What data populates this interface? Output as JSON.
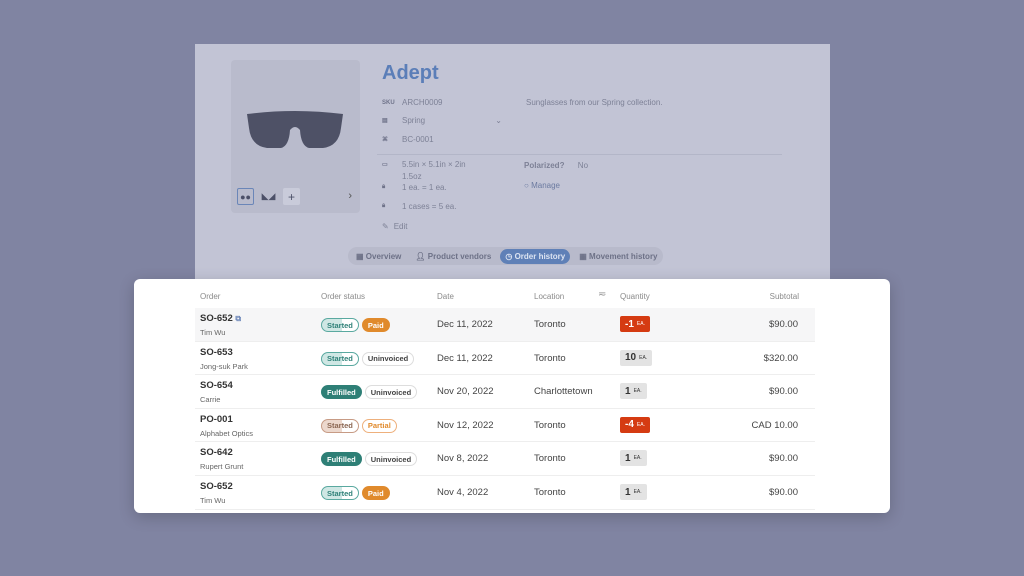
{
  "product": {
    "title": "Adept",
    "sku_label": "SKU",
    "sku": "ARCH0009",
    "collection": "Spring",
    "barcode": "BC-0001",
    "description": "Sunglasses from our Spring collection.",
    "dimensions": "5.5in × 5.1in × 2in",
    "weight": "1.5oz",
    "unit1": "1 ea. = 1 ea.",
    "unit2": "1 cases = 5 ea.",
    "edit": "Edit",
    "polarized_label": "Polarized?",
    "polarized_value": "No",
    "manage": "Manage"
  },
  "tabs": [
    {
      "label": "Overview",
      "icon": "list-icon"
    },
    {
      "label": "Product vendors",
      "icon": "person-icon"
    },
    {
      "label": "Order history",
      "icon": "clock-icon",
      "active": true
    },
    {
      "label": "Movement history",
      "icon": "grid-icon"
    }
  ],
  "table": {
    "headers": {
      "order": "Order",
      "status": "Order status",
      "date": "Date",
      "location": "Location",
      "quantity": "Quantity",
      "subtotal": "Subtotal"
    },
    "rows": [
      {
        "id": "SO-652",
        "name": "Tim Wu",
        "status": "Started",
        "payment": "Paid",
        "date": "Dec 11, 2022",
        "location": "Toronto",
        "qty": "-1",
        "unit": "EA.",
        "negative": true,
        "subtotal": "$90.00"
      },
      {
        "id": "SO-653",
        "name": "Jong-suk Park",
        "status": "Started",
        "payment": "Uninvoiced",
        "date": "Dec 11, 2022",
        "location": "Toronto",
        "qty": "10",
        "unit": "EA.",
        "subtotal": "$320.00"
      },
      {
        "id": "SO-654",
        "name": "Carrie",
        "status": "Fulfilled",
        "payment": "Uninvoiced",
        "date": "Nov 20, 2022",
        "location": "Charlottetown",
        "qty": "1",
        "unit": "EA.",
        "subtotal": "$90.00"
      },
      {
        "id": "PO-001",
        "name": "Alphabet Optics",
        "status": "Started",
        "payment": "Partial",
        "date": "Nov 12, 2022",
        "location": "Toronto",
        "qty": "-4",
        "unit": "EA.",
        "negative": true,
        "subtotal": "CAD 10.00"
      },
      {
        "id": "SO-642",
        "name": "Rupert Grunt",
        "status": "Fulfilled",
        "payment": "Uninvoiced",
        "date": "Nov 8, 2022",
        "location": "Toronto",
        "qty": "1",
        "unit": "EA.",
        "subtotal": "$90.00"
      },
      {
        "id": "SO-652",
        "name": "Tim Wu",
        "status": "Started",
        "payment": "Paid",
        "date": "Nov 4, 2022",
        "location": "Toronto",
        "qty": "1",
        "unit": "EA.",
        "subtotal": "$90.00"
      }
    ]
  },
  "colors": {
    "accent": "#5b7eb8",
    "fulfilled": "#2e7f76",
    "paid": "#e08a2c",
    "negative": "#d53b12"
  }
}
